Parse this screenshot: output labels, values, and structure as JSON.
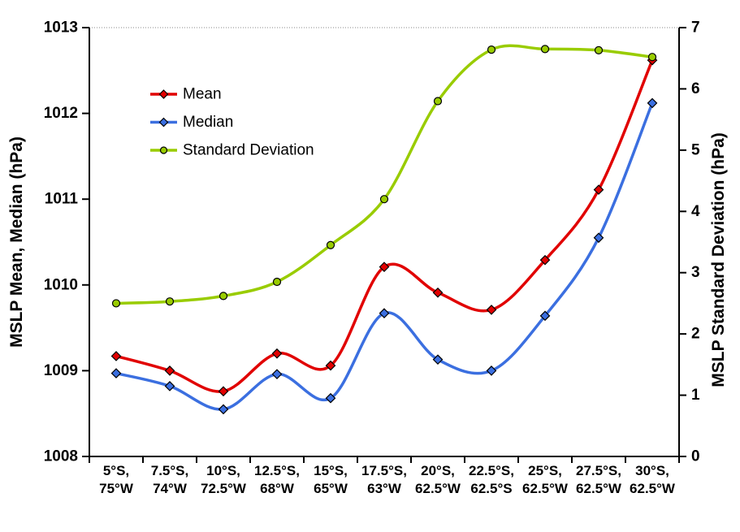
{
  "chart_data": {
    "type": "line",
    "smooth": true,
    "title": "",
    "categories_line1": [
      "5°S,",
      "7.5°S,",
      "10°S,",
      "12.5°S,",
      "15°S,",
      "17.5°S,",
      "20°S,",
      "22.5°S,",
      "25°S,",
      "27.5°S,",
      "30°S,"
    ],
    "categories_line2": [
      "75°W",
      "74°W",
      "72.5°W",
      "68°W",
      "65°W",
      "63°W",
      "62.5°W",
      "62.5°S",
      "62.5°W",
      "62.5°W",
      "62.5°W"
    ],
    "series": [
      {
        "name": "Mean",
        "axis": "left",
        "marker": "diamond",
        "color": "#e10000",
        "values": [
          1009.17,
          1009.0,
          1008.76,
          1009.2,
          1009.06,
          1010.21,
          1009.91,
          1009.71,
          1010.29,
          1011.11,
          1012.62
        ]
      },
      {
        "name": "Median",
        "axis": "left",
        "marker": "diamond",
        "color": "#3b6fe0",
        "values": [
          1008.97,
          1008.82,
          1008.55,
          1008.96,
          1008.68,
          1009.67,
          1009.13,
          1009.0,
          1009.64,
          1010.55,
          1012.12
        ]
      },
      {
        "name": "Standard Deviation",
        "axis": "right",
        "marker": "circle",
        "color": "#99cc00",
        "values": [
          2.5,
          2.53,
          2.62,
          2.85,
          3.45,
          4.2,
          5.8,
          6.64,
          6.65,
          6.63,
          6.52
        ]
      }
    ],
    "left_axis": {
      "label": "MSLP Mean, Median (hPa)",
      "min": 1008,
      "max": 1013,
      "tick_step": 1
    },
    "right_axis": {
      "label": "MSLP Standard Deviation (hPa)",
      "min": 0,
      "max": 7,
      "tick_step": 1
    },
    "legend_position": "inside-top-left",
    "grid": "top-gridline-only",
    "colors": {
      "axis": "#000000",
      "gridline": "#888888",
      "marker_outline": "#000000",
      "text": "#000000"
    }
  }
}
